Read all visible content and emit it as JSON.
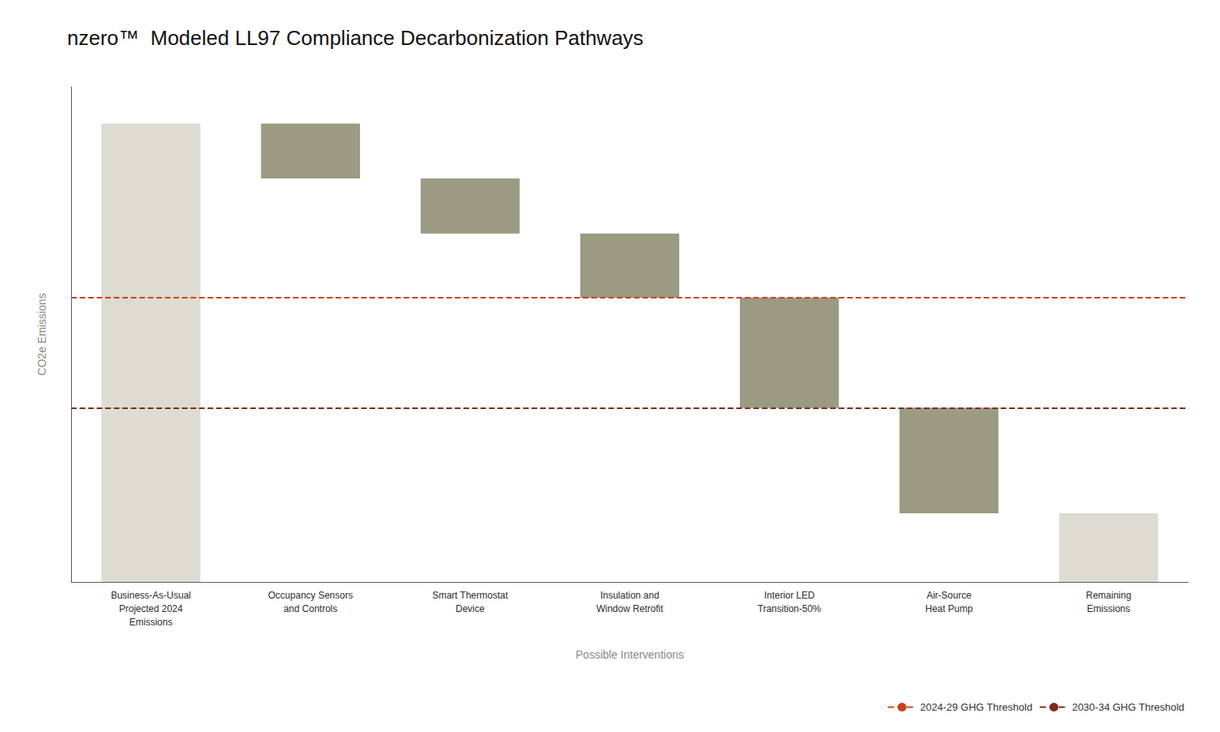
{
  "chart_data": {
    "type": "waterfall",
    "title": "nzero™  Modeled LL97 Compliance Decarbonization Pathways",
    "x_label": "Possible Interventions",
    "y_label": "CO2e Emissions",
    "categories": [
      "Business-As-Usual\nProjected 2024\nEmissions",
      "Occupancy Sensors\nand Controls",
      "Smart Thermostat\nDevice",
      "Insulation and\nWindow Retrofit",
      "Interior LED\nTransition-50%",
      "Air-Source\nHeat Pump",
      "Remaining\nEmissions"
    ],
    "bottoms": [
      0,
      88,
      76,
      62,
      38,
      15,
      0
    ],
    "values": [
      100,
      12,
      12,
      14,
      24,
      23,
      15
    ],
    "colors": [
      "#dddbd2",
      "#9b9a83",
      "#9b9a83",
      "#9b9a83",
      "#9b9a83",
      "#9b9a83",
      "#dddbd2"
    ],
    "thresholds": [
      {
        "name": "2024-29 GHG Threshold",
        "value": 62,
        "color": "#cc4020",
        "line_style": "dashed"
      },
      {
        "name": "2030-34 GHG Threshold",
        "value": 38,
        "color": "#7a2c1a",
        "line_style": "dashed"
      }
    ],
    "ylim": [
      0,
      108
    ],
    "tick_labels": "x",
    "grid": false,
    "legend": "lower right"
  }
}
